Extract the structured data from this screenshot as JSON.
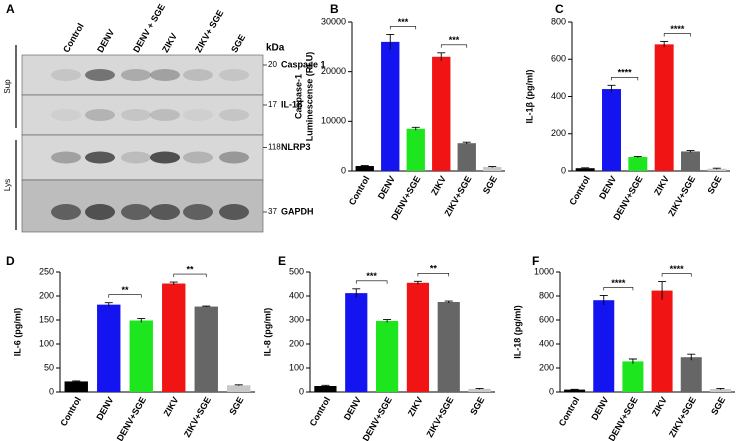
{
  "blot": {
    "panel": "A",
    "unit": "kDa",
    "lanes": [
      "Control",
      "DENV",
      "DENV + SGE",
      "ZIKV",
      "ZIKV+ SGE",
      "SGE"
    ],
    "rows": [
      {
        "weight": "20",
        "label": "Caspase 1"
      },
      {
        "weight": "17",
        "label": "IL-1β"
      },
      {
        "weight": "118",
        "label": "NLRP3"
      },
      {
        "weight": "37",
        "label": "GAPDH"
      }
    ],
    "groups": [
      "Sup",
      "Lys"
    ]
  },
  "chart_data": [
    {
      "type": "bar",
      "panel": "B",
      "ylabel": [
        "Caspase-1",
        "Luminescense (RLU)"
      ],
      "categories": [
        "Control",
        "DENV",
        "DENV+SGE",
        "ZIKV",
        "ZIKV+SGE",
        "SGE"
      ],
      "values": [
        1000,
        26000,
        8500,
        23000,
        5600,
        800
      ],
      "errors": [
        100,
        1500,
        300,
        800,
        200,
        100
      ],
      "colors": [
        "#000000",
        "#1414f0",
        "#1ee61e",
        "#f01414",
        "#666666",
        "#c8c8c8"
      ],
      "ylim": [
        0,
        30000
      ],
      "yticks": [
        0,
        10000,
        20000,
        30000
      ],
      "annotations": [
        {
          "text": "***",
          "between": [
            "DENV",
            "DENV+SGE"
          ]
        },
        {
          "text": "***",
          "between": [
            "ZIKV",
            "ZIKV+SGE"
          ]
        }
      ]
    },
    {
      "type": "bar",
      "panel": "C",
      "ylabel": "IL-1β (pg/ml)",
      "categories": [
        "Control",
        "DENV",
        "DENV+SGE",
        "ZIKV",
        "ZIKV+SGE",
        "SGE"
      ],
      "values": [
        15,
        440,
        75,
        680,
        105,
        12
      ],
      "errors": [
        2,
        20,
        3,
        15,
        5,
        3
      ],
      "colors": [
        "#000000",
        "#1414f0",
        "#1ee61e",
        "#f01414",
        "#666666",
        "#c8c8c8"
      ],
      "ylim": [
        0,
        800
      ],
      "yticks": [
        0,
        200,
        400,
        600,
        800
      ],
      "annotations": [
        {
          "text": "****",
          "between": [
            "DENV",
            "DENV+SGE"
          ]
        },
        {
          "text": "****",
          "between": [
            "ZIKV",
            "ZIKV+SGE"
          ]
        }
      ]
    },
    {
      "type": "bar",
      "panel": "D",
      "ylabel": "IL-6 (pg/ml)",
      "categories": [
        "Control",
        "DENV",
        "DENV+SGE",
        "ZIKV",
        "ZIKV+SGE",
        "SGE"
      ],
      "values": [
        22,
        182,
        149,
        226,
        178,
        14
      ],
      "errors": [
        1,
        4,
        4,
        3,
        1,
        1
      ],
      "colors": [
        "#000000",
        "#1414f0",
        "#1ee61e",
        "#f01414",
        "#666666",
        "#c8c8c8"
      ],
      "ylim": [
        0,
        250
      ],
      "yticks": [
        0,
        50,
        100,
        150,
        200,
        250
      ],
      "annotations": [
        {
          "text": "**",
          "between": [
            "DENV",
            "DENV+SGE"
          ]
        },
        {
          "text": "**",
          "between": [
            "ZIKV",
            "ZIKV+SGE"
          ]
        }
      ]
    },
    {
      "type": "bar",
      "panel": "E",
      "ylabel": "IL-8 (pg/ml)",
      "categories": [
        "Control",
        "DENV",
        "DENV+SGE",
        "ZIKV",
        "ZIKV+SGE",
        "SGE"
      ],
      "values": [
        25,
        412,
        296,
        455,
        375,
        13
      ],
      "errors": [
        3,
        18,
        6,
        6,
        4,
        2
      ],
      "colors": [
        "#000000",
        "#1414f0",
        "#1ee61e",
        "#f01414",
        "#666666",
        "#c8c8c8"
      ],
      "ylim": [
        0,
        500
      ],
      "yticks": [
        0,
        100,
        200,
        300,
        400,
        500
      ],
      "annotations": [
        {
          "text": "***",
          "between": [
            "DENV",
            "DENV+SGE"
          ]
        },
        {
          "text": "**",
          "between": [
            "ZIKV",
            "ZIKV+SGE"
          ]
        }
      ]
    },
    {
      "type": "bar",
      "panel": "F",
      "ylabel": "IL-18 (pg/ml)",
      "categories": [
        "Control",
        "DENV",
        "DENV+SGE",
        "ZIKV",
        "ZIKV+SGE",
        "SGE"
      ],
      "values": [
        20,
        765,
        255,
        845,
        290,
        25
      ],
      "errors": [
        2,
        40,
        20,
        75,
        25,
        5
      ],
      "colors": [
        "#000000",
        "#1414f0",
        "#1ee61e",
        "#f01414",
        "#666666",
        "#c8c8c8"
      ],
      "ylim": [
        0,
        1000
      ],
      "yticks": [
        0,
        200,
        400,
        600,
        800,
        1000
      ],
      "annotations": [
        {
          "text": "****",
          "between": [
            "DENV",
            "DENV+SGE"
          ]
        },
        {
          "text": "****",
          "between": [
            "ZIKV",
            "ZIKV+SGE"
          ]
        }
      ]
    }
  ]
}
